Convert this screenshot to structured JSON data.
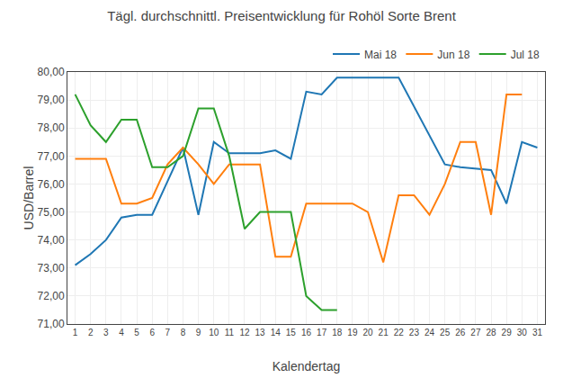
{
  "chart_data": {
    "type": "line",
    "title": "Tägl. durchschnittl. Preisentwicklung für Rohöl Sorte Brent",
    "xlabel": "Kalendertag",
    "ylabel": "USD/Barrel",
    "xlim": [
      0.5,
      31.5
    ],
    "xticks": [
      1,
      2,
      3,
      4,
      5,
      6,
      7,
      8,
      9,
      10,
      11,
      12,
      13,
      14,
      15,
      16,
      17,
      18,
      19,
      20,
      21,
      22,
      23,
      24,
      25,
      26,
      27,
      28,
      29,
      30,
      31
    ],
    "ylim": [
      71.0,
      80.0
    ],
    "yticks": [
      {
        "value": 71.0,
        "label": "71,00"
      },
      {
        "value": 72.0,
        "label": "72,00"
      },
      {
        "value": 73.0,
        "label": "73,00"
      },
      {
        "value": 74.0,
        "label": "74,00"
      },
      {
        "value": 75.0,
        "label": "75,00"
      },
      {
        "value": 76.0,
        "label": "76,00"
      },
      {
        "value": 77.0,
        "label": "77,00"
      },
      {
        "value": 78.0,
        "label": "78,00"
      },
      {
        "value": 79.0,
        "label": "79,00"
      },
      {
        "value": 80.0,
        "label": "80,00"
      }
    ],
    "grid": true,
    "legend": "upper right",
    "series": [
      {
        "name": "Mai 18",
        "x": [
          1,
          2,
          3,
          4,
          5,
          6,
          7,
          8,
          9,
          10,
          11,
          12,
          13,
          14,
          15,
          16,
          17,
          18,
          22,
          25,
          26,
          28,
          29,
          30,
          31
        ],
        "values": [
          73.1,
          73.5,
          74.0,
          74.8,
          74.9,
          74.9,
          76.1,
          77.3,
          74.9,
          77.5,
          77.1,
          77.1,
          77.1,
          77.2,
          76.9,
          79.3,
          79.2,
          79.8,
          79.8,
          76.7,
          76.6,
          76.5,
          75.3,
          77.5,
          77.3
        ]
      },
      {
        "name": "Jun 18",
        "x": [
          1,
          2,
          3,
          4,
          5,
          6,
          7,
          8,
          9,
          10,
          11,
          12,
          13,
          14,
          15,
          16,
          17,
          18,
          19,
          20,
          21,
          22,
          23,
          24,
          25,
          26,
          27,
          28,
          29,
          30
        ],
        "values": [
          76.9,
          76.9,
          76.9,
          75.3,
          75.3,
          75.5,
          76.7,
          77.3,
          76.7,
          76.0,
          76.7,
          76.7,
          76.7,
          73.4,
          73.4,
          75.3,
          75.3,
          75.3,
          75.3,
          75.0,
          73.2,
          75.6,
          75.6,
          74.9,
          76.0,
          77.5,
          77.5,
          74.9,
          79.2,
          79.2
        ]
      },
      {
        "name": "Jul 18",
        "x": [
          1,
          2,
          3,
          4,
          5,
          6,
          7,
          8,
          9,
          10,
          11,
          12,
          13,
          14,
          15,
          16,
          17,
          18
        ],
        "values": [
          79.2,
          78.1,
          77.5,
          78.3,
          78.3,
          76.6,
          76.6,
          77.0,
          78.7,
          78.7,
          77.0,
          74.4,
          75.0,
          75.0,
          75.0,
          72.0,
          71.5,
          71.5
        ]
      }
    ]
  }
}
